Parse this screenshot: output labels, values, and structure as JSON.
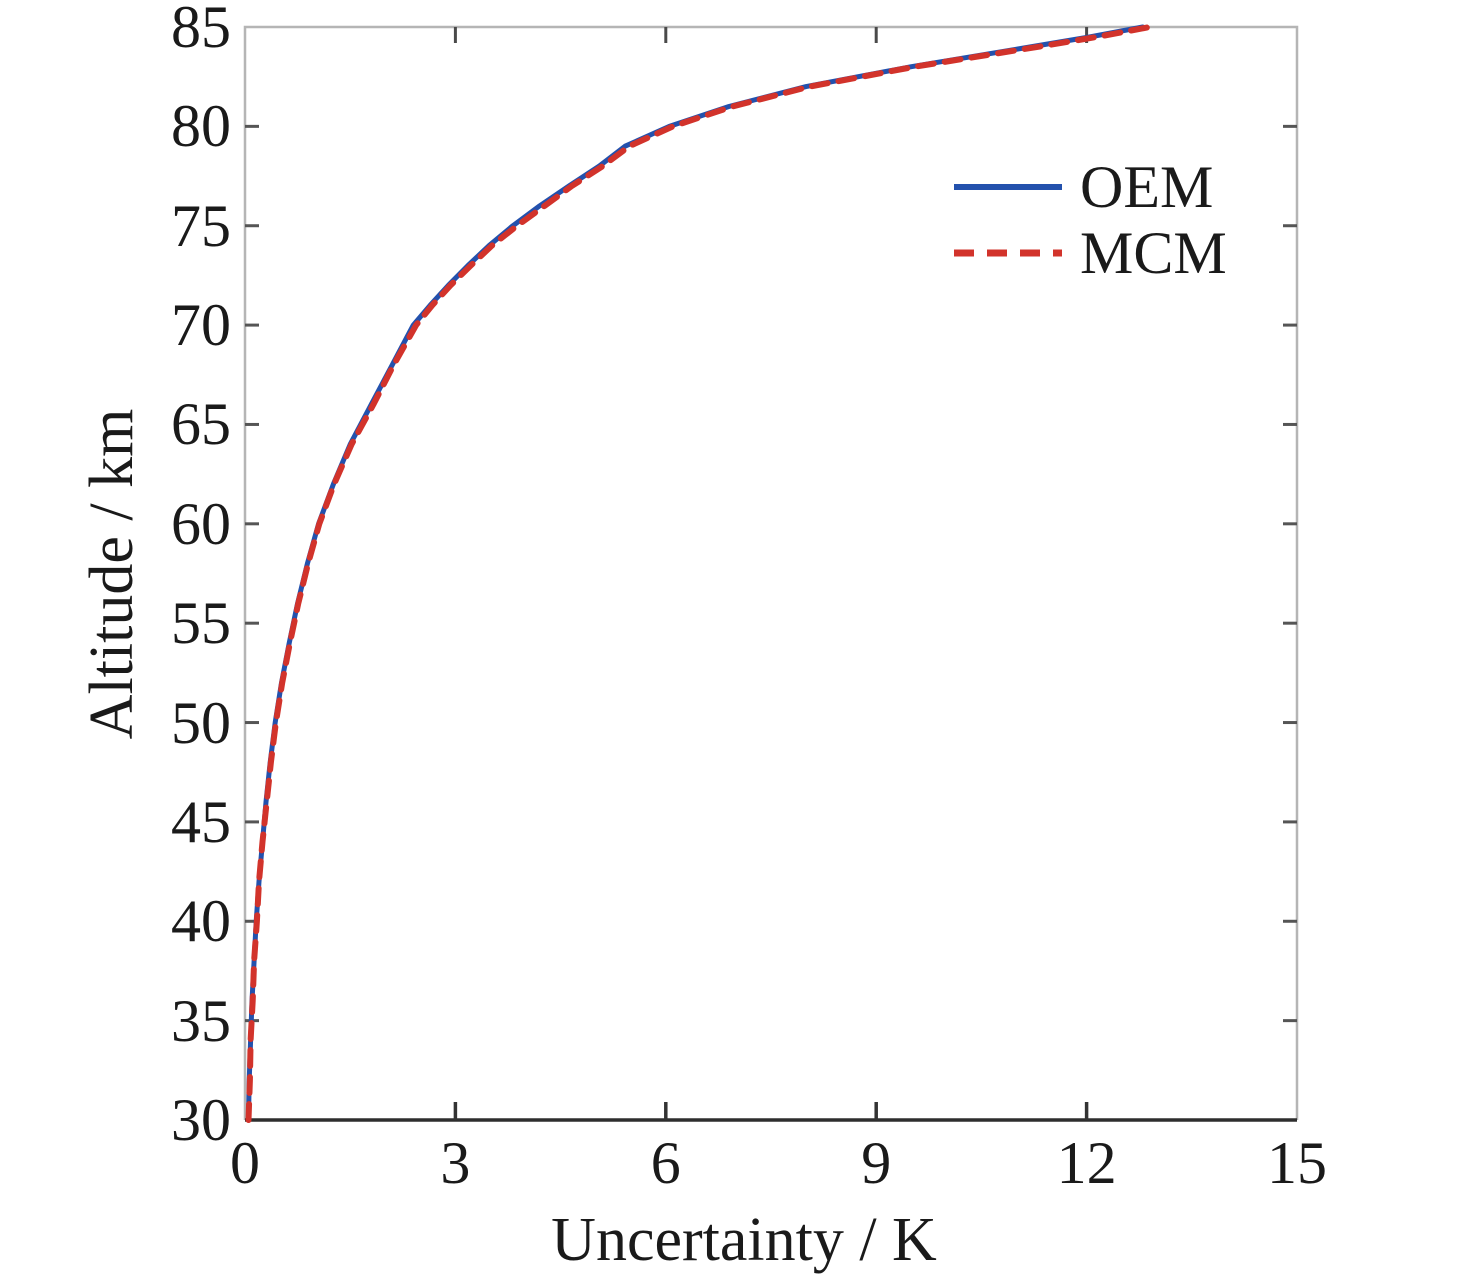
{
  "figure": {
    "background": "#ffffff",
    "box_color": "#b5b5b5",
    "bottom_axis_color": "#2e2e2e",
    "tick_color": "#555555",
    "text_color": "#1a1a1a"
  },
  "chart_data": {
    "type": "line",
    "title": "",
    "xlabel": "Uncertainty / K",
    "ylabel": "Altitude / km",
    "xlim": [
      0,
      15
    ],
    "ylim": [
      30,
      85
    ],
    "xticks": [
      0,
      3,
      6,
      9,
      12,
      15
    ],
    "yticks": [
      30,
      35,
      40,
      45,
      50,
      55,
      60,
      65,
      70,
      75,
      80,
      85
    ],
    "grid": false,
    "legend_position": "upper right",
    "series": [
      {
        "name": "OEM",
        "color": "#2351ad",
        "style": "solid",
        "points": [
          [
            0.05,
            30
          ],
          [
            0.06,
            32
          ],
          [
            0.08,
            34
          ],
          [
            0.1,
            36
          ],
          [
            0.13,
            38
          ],
          [
            0.16,
            40
          ],
          [
            0.2,
            42
          ],
          [
            0.25,
            44
          ],
          [
            0.3,
            46
          ],
          [
            0.36,
            48
          ],
          [
            0.43,
            50
          ],
          [
            0.52,
            52
          ],
          [
            0.63,
            54
          ],
          [
            0.75,
            56
          ],
          [
            0.89,
            58
          ],
          [
            1.05,
            60
          ],
          [
            1.26,
            62
          ],
          [
            1.5,
            64
          ],
          [
            1.8,
            66
          ],
          [
            2.1,
            68
          ],
          [
            2.4,
            70
          ],
          [
            2.64,
            71
          ],
          [
            2.9,
            72
          ],
          [
            3.18,
            73
          ],
          [
            3.48,
            74
          ],
          [
            3.82,
            75
          ],
          [
            4.2,
            76
          ],
          [
            4.62,
            77
          ],
          [
            5.05,
            78
          ],
          [
            5.42,
            79
          ],
          [
            6.05,
            80
          ],
          [
            6.9,
            81
          ],
          [
            8.0,
            82
          ],
          [
            9.5,
            83
          ],
          [
            11.2,
            84
          ],
          [
            12.05,
            84.5
          ],
          [
            12.8,
            85
          ]
        ]
      },
      {
        "name": "MCM",
        "color": "#d2332b",
        "style": "dashed",
        "points": [
          [
            0.05,
            30
          ],
          [
            0.07,
            32
          ],
          [
            0.08,
            34
          ],
          [
            0.11,
            36
          ],
          [
            0.13,
            38
          ],
          [
            0.17,
            40
          ],
          [
            0.2,
            42
          ],
          [
            0.25,
            44
          ],
          [
            0.31,
            46
          ],
          [
            0.37,
            48
          ],
          [
            0.44,
            50
          ],
          [
            0.53,
            52
          ],
          [
            0.64,
            54
          ],
          [
            0.76,
            56
          ],
          [
            0.9,
            58
          ],
          [
            1.06,
            60
          ],
          [
            1.27,
            62
          ],
          [
            1.52,
            64
          ],
          [
            1.83,
            66
          ],
          [
            2.12,
            68
          ],
          [
            2.44,
            70
          ],
          [
            2.67,
            71
          ],
          [
            2.93,
            72
          ],
          [
            3.22,
            73
          ],
          [
            3.52,
            74
          ],
          [
            3.88,
            75
          ],
          [
            4.27,
            76
          ],
          [
            4.66,
            77
          ],
          [
            5.1,
            78
          ],
          [
            5.48,
            79
          ],
          [
            6.1,
            80
          ],
          [
            6.95,
            81
          ],
          [
            8.05,
            82
          ],
          [
            9.55,
            83
          ],
          [
            11.3,
            84
          ],
          [
            12.15,
            84.5
          ],
          [
            12.9,
            85
          ]
        ]
      }
    ]
  }
}
